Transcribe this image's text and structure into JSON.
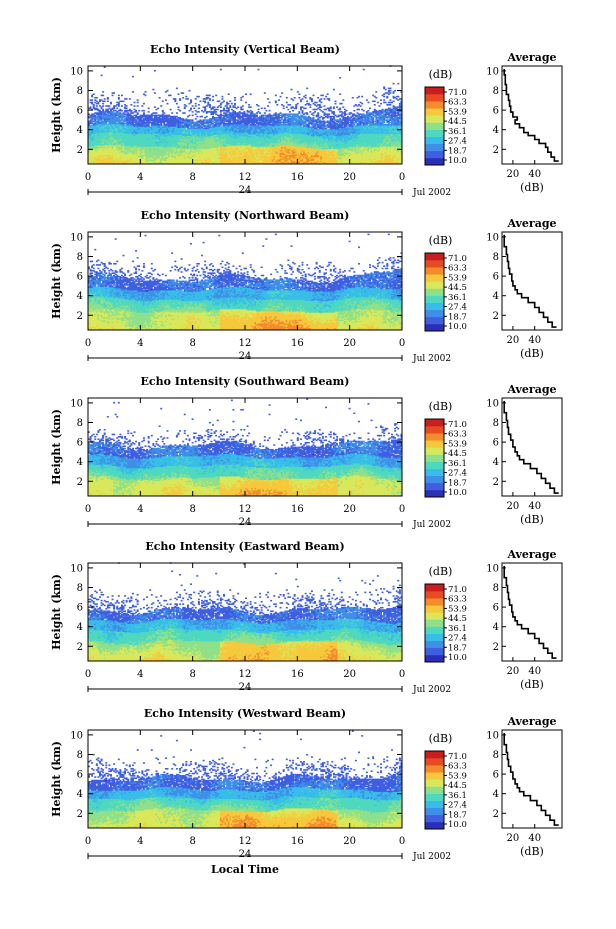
{
  "chart_data": [
    {
      "type": "heatmap",
      "title": "Echo Intensity (Vertical Beam)",
      "ylabel": "Height (km)",
      "x_ticks": [
        "0",
        "4",
        "8",
        "12",
        "16",
        "20",
        "0"
      ],
      "x_day_label": "24",
      "date_label": "Jul 2002",
      "y_ticks": [
        "2",
        "4",
        "6",
        "8",
        "10"
      ],
      "xlim": [
        0,
        24
      ],
      "ylim": [
        0.5,
        10.5
      ],
      "colorbar": {
        "unit": "(dB)",
        "ticks": [
          "71.0",
          "63.3",
          "53.9",
          "44.5",
          "36.1",
          "27.4",
          "18.7",
          "10.0"
        ]
      },
      "layers": {
        "base": 0.5,
        "l1": 2.2,
        "l2": 3.5,
        "l3": 4.3,
        "top": 5.4,
        "frag_max": 8.0,
        "frag_amount": 0.45
      },
      "average": {
        "title": "Average",
        "xlabel": "(dB)",
        "xticks": [
          "20",
          "40"
        ],
        "xlim": [
          10,
          65
        ],
        "profile": [
          [
            62,
            0.8
          ],
          [
            58,
            1.2
          ],
          [
            55,
            1.7
          ],
          [
            52,
            2.2
          ],
          [
            50,
            2.6
          ],
          [
            44,
            3.0
          ],
          [
            40,
            3.4
          ],
          [
            34,
            3.7
          ],
          [
            30,
            4.2
          ],
          [
            26,
            4.6
          ],
          [
            22,
            5.0
          ],
          [
            24,
            5.3
          ],
          [
            20,
            5.8
          ],
          [
            18,
            6.4
          ],
          [
            17,
            7.0
          ],
          [
            16,
            7.6
          ],
          [
            14,
            8.6
          ],
          [
            13,
            9.6
          ],
          [
            12,
            10.2
          ]
        ]
      }
    },
    {
      "type": "heatmap",
      "title": "Echo Intensity (Northward Beam)",
      "ylabel": "Height (km)",
      "x_ticks": [
        "0",
        "4",
        "8",
        "12",
        "16",
        "20",
        "0"
      ],
      "x_day_label": "24",
      "date_label": "Jul 2002",
      "y_ticks": [
        "2",
        "4",
        "6",
        "8",
        "10"
      ],
      "xlim": [
        0,
        24
      ],
      "ylim": [
        0.5,
        10.5
      ],
      "colorbar": {
        "unit": "(dB)",
        "ticks": [
          "71.0",
          "63.3",
          "53.9",
          "44.5",
          "36.1",
          "27.4",
          "18.7",
          "10.0"
        ]
      },
      "layers": {
        "base": 0.5,
        "l1": 2.4,
        "l2": 3.6,
        "l3": 4.6,
        "top": 5.7,
        "frag_max": 7.6,
        "frag_amount": 0.5
      },
      "average": {
        "title": "Average",
        "xlabel": "(dB)",
        "xticks": [
          "20",
          "40"
        ],
        "xlim": [
          10,
          65
        ],
        "profile": [
          [
            60,
            0.8
          ],
          [
            56,
            1.3
          ],
          [
            52,
            1.8
          ],
          [
            48,
            2.3
          ],
          [
            44,
            2.8
          ],
          [
            40,
            3.3
          ],
          [
            34,
            3.8
          ],
          [
            28,
            4.2
          ],
          [
            24,
            4.6
          ],
          [
            22,
            5.0
          ],
          [
            20,
            5.5
          ],
          [
            19,
            6.2
          ],
          [
            17,
            6.8
          ],
          [
            16,
            7.5
          ],
          [
            15,
            8.2
          ],
          [
            14,
            9.0
          ],
          [
            12,
            10.2
          ]
        ]
      }
    },
    {
      "type": "heatmap",
      "title": "Echo Intensity (Southward Beam)",
      "ylabel": "Height (km)",
      "x_ticks": [
        "0",
        "4",
        "8",
        "12",
        "16",
        "20",
        "0"
      ],
      "x_day_label": "24",
      "date_label": "Jul 2002",
      "y_ticks": [
        "2",
        "4",
        "6",
        "8",
        "10"
      ],
      "xlim": [
        0,
        24
      ],
      "ylim": [
        0.5,
        10.5
      ],
      "colorbar": {
        "unit": "(dB)",
        "ticks": [
          "71.0",
          "63.3",
          "53.9",
          "44.5",
          "36.1",
          "27.4",
          "18.7",
          "10.0"
        ]
      },
      "layers": {
        "base": 0.5,
        "l1": 2.3,
        "l2": 3.5,
        "l3": 4.5,
        "top": 5.6,
        "frag_max": 7.4,
        "frag_amount": 0.45
      },
      "average": {
        "title": "Average",
        "xlabel": "(dB)",
        "xticks": [
          "20",
          "40"
        ],
        "xlim": [
          10,
          65
        ],
        "profile": [
          [
            62,
            0.8
          ],
          [
            58,
            1.3
          ],
          [
            54,
            1.8
          ],
          [
            50,
            2.3
          ],
          [
            46,
            2.8
          ],
          [
            42,
            3.3
          ],
          [
            36,
            3.8
          ],
          [
            30,
            4.2
          ],
          [
            26,
            4.6
          ],
          [
            24,
            5.0
          ],
          [
            22,
            5.5
          ],
          [
            20,
            6.2
          ],
          [
            18,
            6.8
          ],
          [
            16,
            7.5
          ],
          [
            15,
            8.2
          ],
          [
            14,
            9.0
          ],
          [
            12,
            10.2
          ]
        ]
      }
    },
    {
      "type": "heatmap",
      "title": "Echo Intensity (Eastward Beam)",
      "ylabel": "Height (km)",
      "x_ticks": [
        "0",
        "4",
        "8",
        "12",
        "16",
        "20",
        "0"
      ],
      "x_day_label": "24",
      "date_label": "Jul 2002",
      "y_ticks": [
        "2",
        "4",
        "6",
        "8",
        "10"
      ],
      "xlim": [
        0,
        24
      ],
      "ylim": [
        0.5,
        10.5
      ],
      "colorbar": {
        "unit": "(dB)",
        "ticks": [
          "71.0",
          "63.3",
          "53.9",
          "44.5",
          "36.1",
          "27.4",
          "18.7",
          "10.0"
        ]
      },
      "layers": {
        "base": 0.5,
        "l1": 2.4,
        "l2": 3.6,
        "l3": 4.6,
        "top": 5.6,
        "frag_max": 7.8,
        "frag_amount": 0.48
      },
      "average": {
        "title": "Average",
        "xlabel": "(dB)",
        "xticks": [
          "20",
          "40"
        ],
        "xlim": [
          10,
          65
        ],
        "profile": [
          [
            60,
            0.8
          ],
          [
            56,
            1.3
          ],
          [
            52,
            1.8
          ],
          [
            48,
            2.3
          ],
          [
            44,
            2.8
          ],
          [
            40,
            3.3
          ],
          [
            34,
            3.8
          ],
          [
            28,
            4.2
          ],
          [
            24,
            4.6
          ],
          [
            22,
            5.0
          ],
          [
            20,
            5.5
          ],
          [
            19,
            6.2
          ],
          [
            17,
            6.8
          ],
          [
            16,
            7.5
          ],
          [
            15,
            8.2
          ],
          [
            14,
            9.0
          ],
          [
            12,
            10.2
          ]
        ]
      }
    },
    {
      "type": "heatmap",
      "title": "Echo Intensity (Westward Beam)",
      "ylabel": "Height (km)",
      "x_ticks": [
        "0",
        "4",
        "8",
        "12",
        "16",
        "20",
        "0"
      ],
      "x_day_label": "24",
      "date_label": "Jul 2002",
      "xlabel": "Local Time",
      "y_ticks": [
        "2",
        "4",
        "6",
        "8",
        "10"
      ],
      "xlim": [
        0,
        24
      ],
      "ylim": [
        0.5,
        10.5
      ],
      "colorbar": {
        "unit": "(dB)",
        "ticks": [
          "71.0",
          "63.3",
          "53.9",
          "44.5",
          "36.1",
          "27.4",
          "18.7",
          "10.0"
        ]
      },
      "layers": {
        "base": 0.5,
        "l1": 2.3,
        "l2": 3.5,
        "l3": 4.4,
        "top": 5.5,
        "frag_max": 7.8,
        "frag_amount": 0.48
      },
      "average": {
        "title": "Average",
        "xlabel": "(dB)",
        "xticks": [
          "20",
          "40"
        ],
        "xlim": [
          10,
          65
        ],
        "profile": [
          [
            62,
            0.8
          ],
          [
            58,
            1.3
          ],
          [
            54,
            1.8
          ],
          [
            50,
            2.3
          ],
          [
            46,
            2.8
          ],
          [
            42,
            3.3
          ],
          [
            36,
            3.8
          ],
          [
            30,
            4.2
          ],
          [
            26,
            4.6
          ],
          [
            24,
            5.0
          ],
          [
            22,
            5.5
          ],
          [
            20,
            6.2
          ],
          [
            18,
            6.8
          ],
          [
            16,
            7.5
          ],
          [
            15,
            8.2
          ],
          [
            14,
            9.0
          ],
          [
            12,
            10.2
          ]
        ]
      }
    }
  ],
  "colormap": [
    "#2a2fb8",
    "#3f5fe0",
    "#3f8fe8",
    "#38bde8",
    "#4fd8c0",
    "#8fe08a",
    "#d8e85a",
    "#f6c83c",
    "#f48c2c",
    "#e84a24",
    "#c81e1e"
  ]
}
